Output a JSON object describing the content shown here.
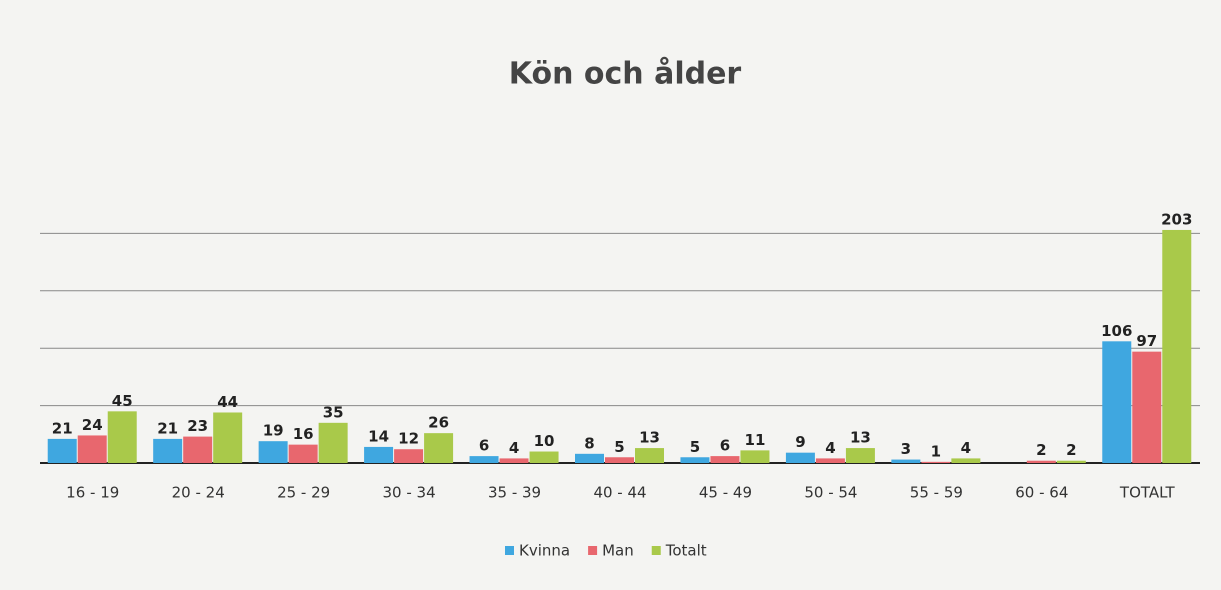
{
  "chart_data": {
    "type": "bar",
    "title": "Kön och ålder",
    "categories": [
      "16 - 19",
      "20 - 24",
      "25 - 29",
      "30 - 34",
      "35 - 39",
      "40 - 44",
      "45 - 49",
      "50 - 54",
      "55 - 59",
      "60 - 64",
      "TOTALT"
    ],
    "series": [
      {
        "name": "Kvinna",
        "color": "#3fa7e0",
        "values": [
          21,
          21,
          19,
          14,
          6,
          8,
          5,
          9,
          3,
          null,
          106
        ]
      },
      {
        "name": "Man",
        "color": "#e8676e",
        "values": [
          24,
          23,
          16,
          12,
          4,
          5,
          6,
          4,
          1,
          2,
          97
        ]
      },
      {
        "name": "Totalt",
        "color": "#a9c94a",
        "values": [
          45,
          44,
          35,
          26,
          10,
          13,
          11,
          13,
          4,
          2,
          203
        ]
      }
    ],
    "ylim": [
      0,
      250
    ],
    "yticks": [
      0,
      50,
      100,
      150,
      200
    ],
    "grid": true,
    "legend": "bottom"
  }
}
